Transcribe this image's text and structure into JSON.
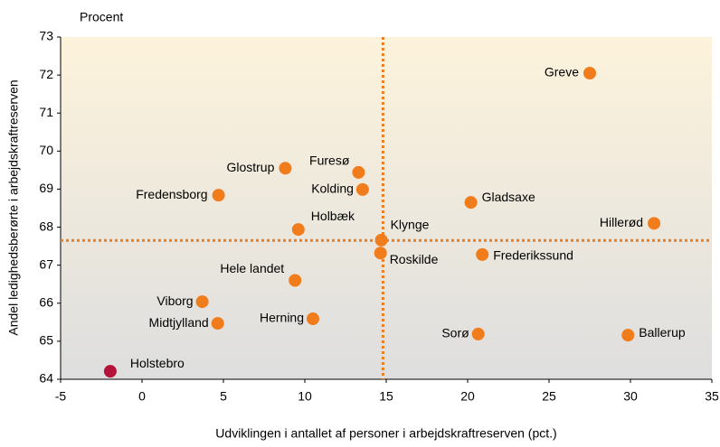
{
  "chart_data": {
    "type": "scatter",
    "ylabel_top": "Procent",
    "ylabel": "Andel ledighedsberørte i arbejdskraftreserven",
    "xlabel": "Udviklingen i antallet af personer i arbejdskraftreserven (pct.)",
    "xlim": [
      -5,
      35
    ],
    "xticks": [
      -5,
      0,
      5,
      10,
      15,
      20,
      25,
      30,
      35
    ],
    "ylim": [
      64,
      73
    ],
    "yticks": [
      64,
      65,
      66,
      67,
      68,
      69,
      70,
      71,
      72,
      73
    ],
    "reference_lines": {
      "x": 14.8,
      "y": 67.65,
      "color": "#f07c1b"
    },
    "series": [
      {
        "color": "#f07c1b",
        "labels": [
          "Greve",
          "Glostrup",
          "Furesø",
          "Kolding",
          "Fredensborg",
          "Gladsaxe",
          "Hillerød",
          "Holbæk",
          "Klynge",
          "Roskilde",
          "Frederikssund",
          "Hele landet",
          "Viborg",
          "Midtjylland",
          "Herning",
          "Sorø",
          "Ballerup"
        ],
        "x": [
          27.5,
          8.8,
          13.3,
          13.55,
          4.7,
          20.2,
          31.45,
          9.6,
          14.7,
          14.65,
          20.9,
          9.4,
          3.7,
          4.65,
          10.5,
          20.65,
          29.85
        ],
        "values": [
          72.05,
          69.55,
          69.44,
          68.99,
          68.84,
          68.65,
          68.1,
          67.94,
          67.66,
          67.32,
          67.28,
          66.6,
          66.04,
          65.47,
          65.59,
          65.19,
          65.16
        ]
      },
      {
        "color": "#b5123a",
        "labels": [
          "Holstebro"
        ],
        "x": [
          -1.95
        ],
        "values": [
          64.21
        ]
      }
    ]
  }
}
